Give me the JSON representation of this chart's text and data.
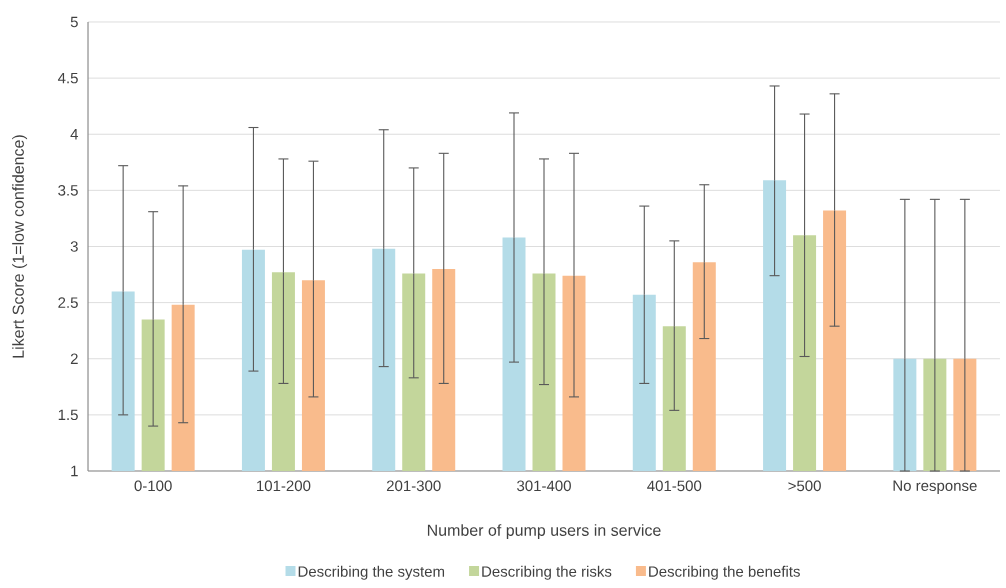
{
  "chart_data": {
    "type": "bar",
    "xlabel": "Number of pump users in service",
    "ylabel": "Likert Score (1=low confidence)",
    "categories": [
      "0-100",
      "101-200",
      "201-300",
      "301-400",
      "401-500",
      ">500",
      "No response"
    ],
    "series": [
      {
        "name": "Describing the system",
        "color": "#b4dce8",
        "values": [
          2.6,
          2.97,
          2.98,
          3.08,
          2.57,
          3.59,
          2.0
        ],
        "errors": [
          [
            1.5,
            3.72
          ],
          [
            1.89,
            4.06
          ],
          [
            1.93,
            4.04
          ],
          [
            1.97,
            4.19
          ],
          [
            1.78,
            3.36
          ],
          [
            2.74,
            4.43
          ],
          [
            1.0,
            3.42
          ]
        ]
      },
      {
        "name": "Describing the risks",
        "color": "#c3d69b",
        "values": [
          2.35,
          2.77,
          2.76,
          2.76,
          2.29,
          3.1,
          2.0
        ],
        "errors": [
          [
            1.4,
            3.31
          ],
          [
            1.78,
            3.78
          ],
          [
            1.83,
            3.7
          ],
          [
            1.77,
            3.78
          ],
          [
            1.54,
            3.05
          ],
          [
            2.02,
            4.18
          ],
          [
            1.0,
            3.42
          ]
        ]
      },
      {
        "name": "Describing the benefits",
        "color": "#f9bb8c",
        "values": [
          2.48,
          2.7,
          2.8,
          2.74,
          2.86,
          3.32,
          2.0
        ],
        "errors": [
          [
            1.43,
            3.54
          ],
          [
            1.66,
            3.76
          ],
          [
            1.78,
            3.83
          ],
          [
            1.66,
            3.83
          ],
          [
            2.18,
            3.55
          ],
          [
            2.29,
            4.36
          ],
          [
            1.0,
            3.42
          ]
        ]
      }
    ],
    "ylim": [
      1,
      5
    ],
    "yticks": [
      1,
      1.5,
      2,
      2.5,
      3,
      3.5,
      4,
      4.5,
      5
    ],
    "grid": "y",
    "legend": "bottom"
  }
}
